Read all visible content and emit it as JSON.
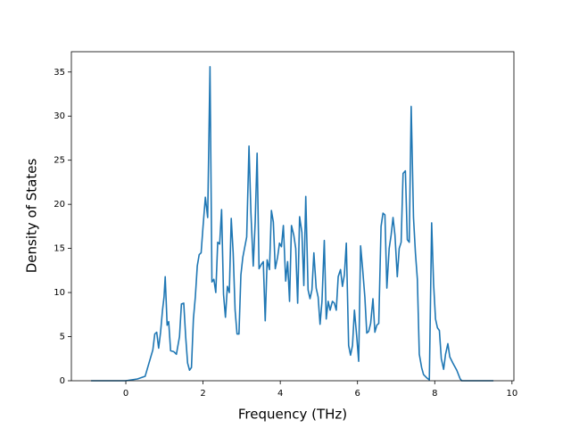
{
  "chart_data": {
    "type": "line",
    "xlabel": "Frequency (THz)",
    "ylabel": "Density of States",
    "x": [
      -0.9,
      0.0,
      0.3,
      0.5,
      0.6,
      0.7,
      0.75,
      0.8,
      0.85,
      0.9,
      0.95,
      0.99,
      1.02,
      1.07,
      1.11,
      1.16,
      1.24,
      1.31,
      1.39,
      1.44,
      1.5,
      1.55,
      1.6,
      1.65,
      1.7,
      1.75,
      1.8,
      1.85,
      1.9,
      1.95,
      2.0,
      2.06,
      2.12,
      2.18,
      2.23,
      2.28,
      2.33,
      2.38,
      2.43,
      2.48,
      2.53,
      2.58,
      2.63,
      2.68,
      2.73,
      2.78,
      2.83,
      2.88,
      2.93,
      2.98,
      3.03,
      3.13,
      3.19,
      3.24,
      3.3,
      3.35,
      3.4,
      3.45,
      3.51,
      3.56,
      3.61,
      3.66,
      3.72,
      3.77,
      3.82,
      3.87,
      3.93,
      3.98,
      4.03,
      4.08,
      4.14,
      4.19,
      4.24,
      4.29,
      4.35,
      4.4,
      4.45,
      4.5,
      4.56,
      4.61,
      4.66,
      4.72,
      4.77,
      4.82,
      4.87,
      4.93,
      4.98,
      5.03,
      5.08,
      5.14,
      5.19,
      5.24,
      5.29,
      5.35,
      5.4,
      5.45,
      5.5,
      5.56,
      5.61,
      5.66,
      5.71,
      5.77,
      5.82,
      5.87,
      5.92,
      5.98,
      6.03,
      6.08,
      6.13,
      6.19,
      6.24,
      6.29,
      6.34,
      6.4,
      6.45,
      6.5,
      6.55,
      6.61,
      6.66,
      6.71,
      6.76,
      6.82,
      6.87,
      6.92,
      6.97,
      7.03,
      7.08,
      7.13,
      7.18,
      7.24,
      7.29,
      7.34,
      7.39,
      7.45,
      7.5,
      7.55,
      7.6,
      7.66,
      7.71,
      7.8,
      7.86,
      7.92,
      7.97,
      8.02,
      8.07,
      8.12,
      8.17,
      8.23,
      8.28,
      8.34,
      8.39,
      8.47,
      8.57,
      8.66,
      8.7,
      9.52
    ],
    "values": [
      0,
      0,
      0.2,
      0.5,
      2,
      3.5,
      5.3,
      5.5,
      3.7,
      5.5,
      8,
      9.5,
      11.8,
      6.3,
      6.7,
      3.4,
      3.3,
      3.0,
      5,
      8.7,
      8.8,
      5,
      2,
      1.2,
      1.5,
      7,
      9.5,
      13,
      14.3,
      14.5,
      17.5,
      20.8,
      18.5,
      35.6,
      11.2,
      11.5,
      10,
      15.7,
      15.5,
      19.4,
      9.8,
      7.2,
      10.7,
      10,
      18.4,
      14.5,
      8,
      5.3,
      5.3,
      12,
      14,
      16.3,
      26.6,
      19,
      13,
      18,
      25.8,
      12.7,
      13.2,
      13.5,
      6.8,
      13.7,
      12.6,
      19.3,
      18,
      12.7,
      14,
      15.6,
      15.2,
      17.6,
      11.3,
      13.5,
      9,
      17.6,
      16.5,
      15,
      8.8,
      18.6,
      16.8,
      10.8,
      20.9,
      10.3,
      9.3,
      10.3,
      14.5,
      10.5,
      9.5,
      6.4,
      9,
      15.9,
      7,
      9,
      8,
      9,
      8.8,
      8,
      11.8,
      12.6,
      10.7,
      12,
      15.6,
      4,
      2.9,
      4,
      8,
      5,
      2.2,
      15.3,
      12.8,
      9.5,
      5.4,
      5.6,
      6.5,
      9.3,
      5.5,
      6.3,
      6.5,
      17.5,
      19,
      18.8,
      10.5,
      15,
      16.5,
      18.5,
      16.5,
      11.8,
      15,
      15.7,
      23.5,
      23.8,
      16,
      15.7,
      31.1,
      18.5,
      14.5,
      11.5,
      3,
      1.5,
      0.7,
      0.3,
      0.1,
      17.9,
      11,
      7,
      6,
      5.7,
      2.5,
      1.3,
      3,
      4.2,
      2.7,
      2,
      1.2,
      0.2,
      0,
      0
    ],
    "color": "#1f77b4",
    "xlim": [
      -1.41,
      10.05
    ],
    "xticks": [
      0,
      2,
      4,
      6,
      8,
      10
    ],
    "ylim": [
      0,
      37.3
    ],
    "yticks": [
      0,
      5,
      10,
      15,
      20,
      25,
      30,
      35
    ]
  }
}
